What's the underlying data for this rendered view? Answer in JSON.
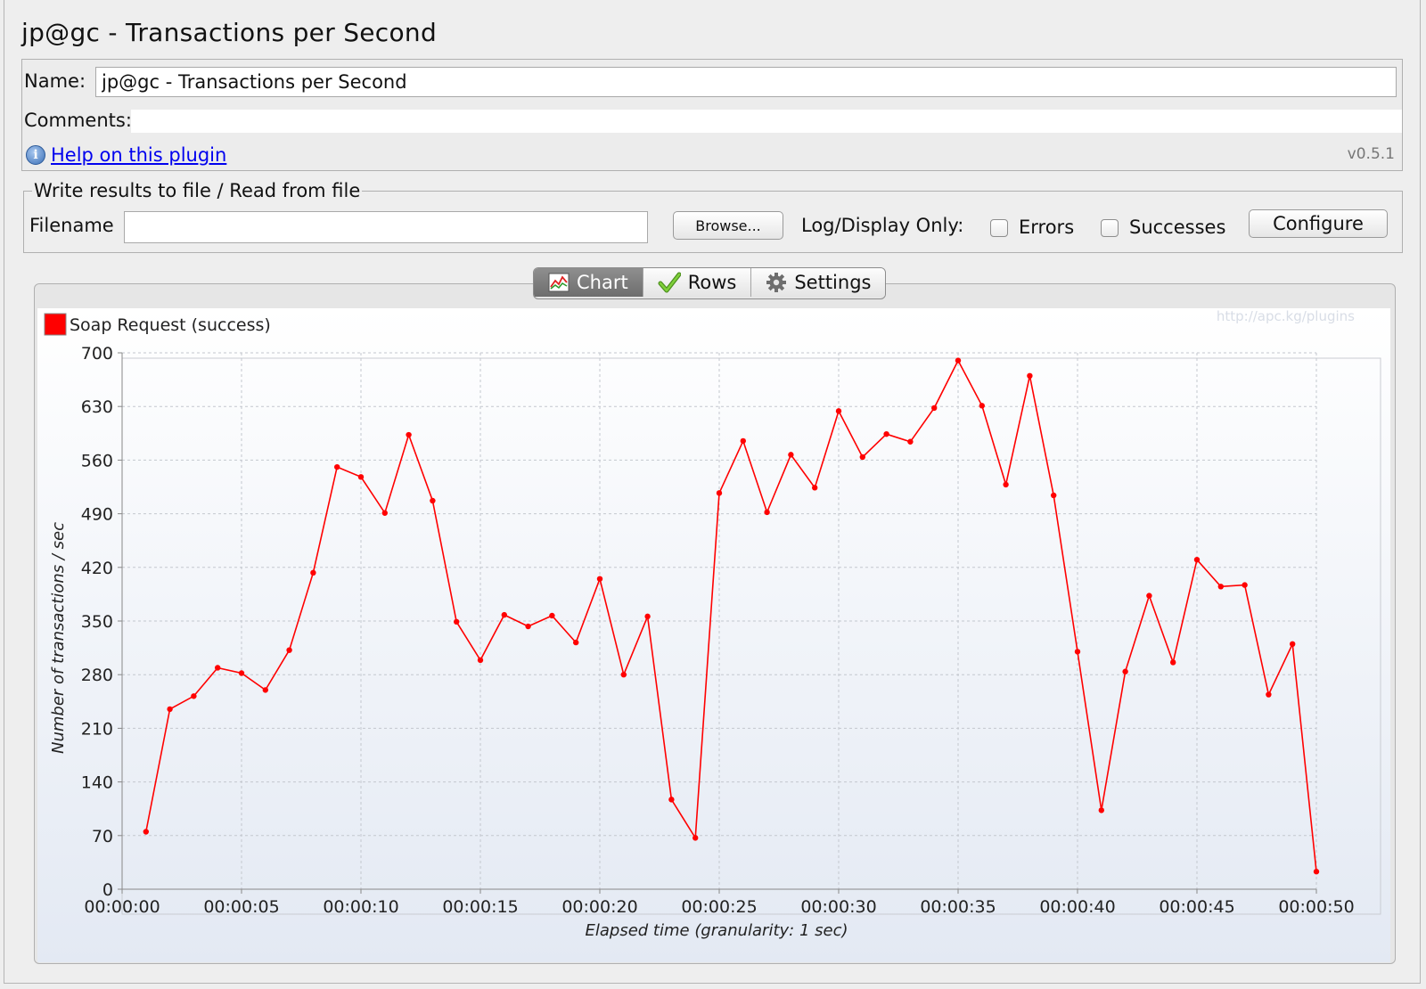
{
  "window": {
    "title": "jp@gc - Transactions per Second"
  },
  "form": {
    "name_label": "Name:",
    "name_value": "jp@gc - Transactions per Second",
    "comments_label": "Comments:",
    "comments_value": "",
    "help_link": "Help on this plugin",
    "version": "v0.5.1"
  },
  "file_section": {
    "legend": "Write results to file / Read from file",
    "filename_label": "Filename",
    "filename_value": "",
    "browse_label": "Browse...",
    "log_display_label": "Log/Display Only:",
    "errors_label": "Errors",
    "errors_checked": false,
    "successes_label": "Successes",
    "successes_checked": false,
    "configure_label": "Configure"
  },
  "tabs": [
    {
      "label": "Chart",
      "icon": "chart-icon",
      "active": true
    },
    {
      "label": "Rows",
      "icon": "checkmark-icon",
      "active": false
    },
    {
      "label": "Settings",
      "icon": "gear-icon",
      "active": false
    }
  ],
  "chart_data": {
    "type": "line",
    "watermark": "http://apc.kg/plugins",
    "legend": {
      "placement": "top-left"
    },
    "xlabel": "Elapsed time (granularity: 1 sec)",
    "ylabel": "Number of transactions / sec",
    "ylim": [
      0,
      700
    ],
    "xlim": [
      0,
      50
    ],
    "grid": true,
    "y_ticks": [
      "0",
      "70",
      "140",
      "210",
      "280",
      "350",
      "420",
      "490",
      "560",
      "630",
      "700"
    ],
    "x_ticks": [
      "00:00:00",
      "00:00:05",
      "00:00:10",
      "00:00:15",
      "00:00:20",
      "00:00:25",
      "00:00:30",
      "00:00:35",
      "00:00:40",
      "00:00:45",
      "00:00:50"
    ],
    "series": [
      {
        "name": "Soap Request (success)",
        "color": "#ff0000",
        "x": [
          1,
          2,
          3,
          4,
          5,
          6,
          7,
          8,
          9,
          10,
          11,
          12,
          13,
          14,
          15,
          16,
          17,
          18,
          19,
          20,
          21,
          22,
          23,
          24,
          25,
          26,
          27,
          28,
          29,
          30,
          31,
          32,
          33,
          34,
          35,
          36,
          37,
          38,
          39,
          40,
          41,
          42,
          43,
          44,
          45,
          46,
          47,
          48,
          49,
          50
        ],
        "values": [
          75,
          235,
          252,
          289,
          282,
          260,
          312,
          413,
          551,
          538,
          491,
          593,
          507,
          349,
          299,
          358,
          343,
          357,
          322,
          405,
          280,
          356,
          117,
          67,
          517,
          585,
          492,
          567,
          524,
          624,
          564,
          594,
          584,
          628,
          690,
          631,
          528,
          670,
          514,
          310,
          103,
          284,
          383,
          296,
          430,
          395,
          397,
          254,
          320,
          23
        ]
      }
    ]
  }
}
